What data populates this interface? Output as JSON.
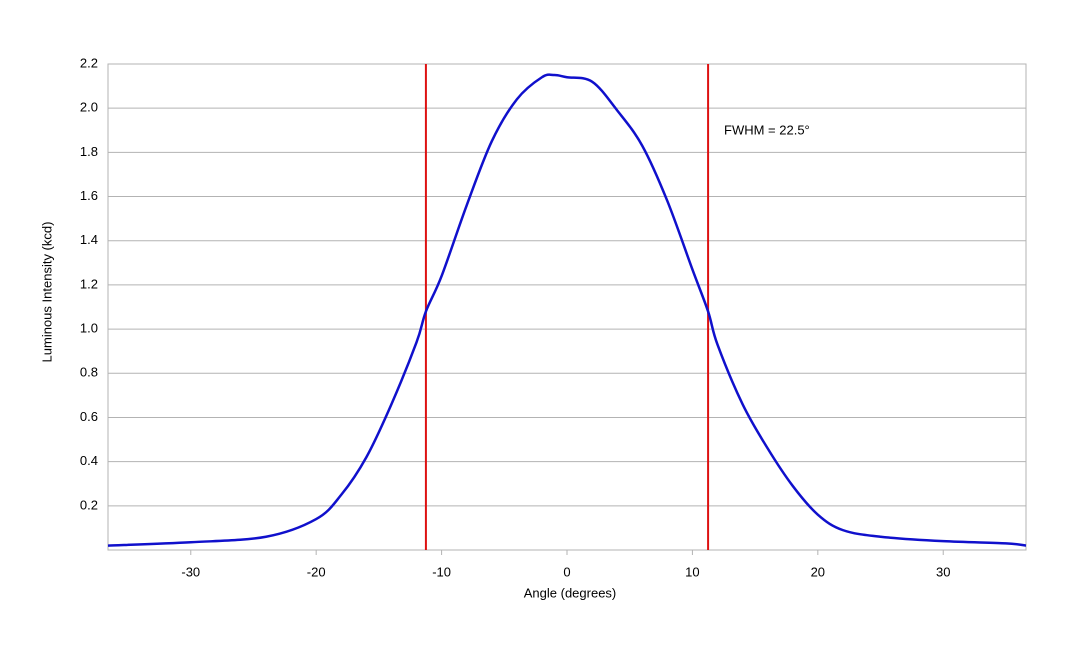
{
  "chart_data": {
    "type": "line",
    "x_label": "Angle (degrees)",
    "y_label": "Luminous Intensity (kcd)",
    "x": [
      -36.6,
      -30,
      -24,
      -20,
      -18,
      -16,
      -14,
      -12,
      -11.25,
      -10,
      -8,
      -6,
      -4,
      -2,
      -1,
      0,
      2,
      4,
      6,
      8,
      10,
      11.25,
      12,
      14,
      16,
      18,
      20,
      22,
      25,
      30,
      35,
      36.6
    ],
    "values": [
      0.02,
      0.035,
      0.06,
      0.14,
      0.25,
      0.42,
      0.66,
      0.94,
      1.08,
      1.24,
      1.56,
      1.85,
      2.04,
      2.14,
      2.15,
      2.14,
      2.12,
      1.99,
      1.83,
      1.58,
      1.27,
      1.08,
      0.93,
      0.66,
      0.46,
      0.29,
      0.16,
      0.09,
      0.06,
      0.04,
      0.03,
      0.02
    ],
    "color": "#1010cc",
    "markers": [
      -11.25,
      11.25
    ],
    "marker_color": "#dd1111",
    "annotation": "FWHM = 22.5°",
    "xlim": [
      -36.6,
      36.6
    ],
    "xticks": [
      -30,
      -20,
      -10,
      0,
      10,
      20,
      30
    ],
    "ylim": [
      0,
      2.2
    ],
    "yticks": [
      0.2,
      0.4,
      0.6,
      0.8,
      {
        "value": 1,
        "label": "1.0"
      },
      1.2,
      1.4,
      1.6,
      1.8,
      {
        "value": 2,
        "label": "2.0"
      },
      2.2
    ],
    "grid": true
  }
}
